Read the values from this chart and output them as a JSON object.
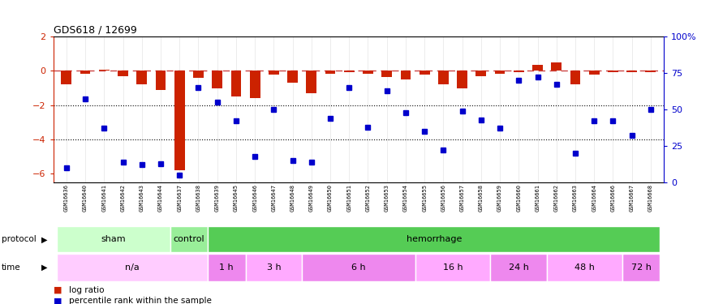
{
  "title": "GDS618 / 12699",
  "samples": [
    "GSM16636",
    "GSM16640",
    "GSM16641",
    "GSM16642",
    "GSM16643",
    "GSM16644",
    "GSM16637",
    "GSM16638",
    "GSM16639",
    "GSM16645",
    "GSM16646",
    "GSM16647",
    "GSM16648",
    "GSM16649",
    "GSM16650",
    "GSM16651",
    "GSM16652",
    "GSM16653",
    "GSM16654",
    "GSM16655",
    "GSM16656",
    "GSM16657",
    "GSM16658",
    "GSM16659",
    "GSM16660",
    "GSM16661",
    "GSM16662",
    "GSM16663",
    "GSM16664",
    "GSM16666",
    "GSM16667",
    "GSM16668"
  ],
  "log_ratio": [
    -0.8,
    -0.15,
    0.05,
    -0.3,
    -0.8,
    -1.1,
    -5.8,
    -0.4,
    -1.0,
    -1.5,
    -1.6,
    -0.2,
    -0.7,
    -1.3,
    -0.15,
    -0.1,
    -0.15,
    -0.35,
    -0.5,
    -0.2,
    -0.8,
    -1.0,
    -0.3,
    -0.15,
    -0.1,
    0.35,
    0.5,
    -0.8,
    -0.2,
    -0.1,
    -0.1,
    -0.1
  ],
  "percentile_rank": [
    10,
    57,
    37,
    14,
    12,
    13,
    5,
    65,
    55,
    42,
    18,
    50,
    15,
    14,
    44,
    65,
    38,
    63,
    48,
    35,
    22,
    49,
    43,
    37,
    70,
    72,
    67,
    20,
    42,
    42,
    32,
    50
  ],
  "protocol_groups": [
    {
      "label": "sham",
      "start": 0,
      "end": 5,
      "color": "#ccffcc"
    },
    {
      "label": "control",
      "start": 6,
      "end": 7,
      "color": "#99ee99"
    },
    {
      "label": "hemorrhage",
      "start": 8,
      "end": 31,
      "color": "#55cc55"
    }
  ],
  "time_groups": [
    {
      "label": "n/a",
      "start": 0,
      "end": 7,
      "color": "#ffccff"
    },
    {
      "label": "1 h",
      "start": 8,
      "end": 9,
      "color": "#ee88ee"
    },
    {
      "label": "3 h",
      "start": 10,
      "end": 12,
      "color": "#ffaaff"
    },
    {
      "label": "6 h",
      "start": 13,
      "end": 18,
      "color": "#ee88ee"
    },
    {
      "label": "16 h",
      "start": 19,
      "end": 22,
      "color": "#ffaaff"
    },
    {
      "label": "24 h",
      "start": 23,
      "end": 25,
      "color": "#ee88ee"
    },
    {
      "label": "48 h",
      "start": 26,
      "end": 29,
      "color": "#ffaaff"
    },
    {
      "label": "72 h",
      "start": 30,
      "end": 31,
      "color": "#ee88ee"
    }
  ],
  "ylim": [
    -6.5,
    2.0
  ],
  "yticks_left": [
    2,
    0,
    -2,
    -4,
    -6
  ],
  "yticks_right": [
    100,
    75,
    50,
    25,
    0
  ],
  "bar_color": "#cc2200",
  "dot_color": "#0000cc",
  "dash_color": "#cc4444",
  "xticklabel_bg": "#cccccc",
  "legend_log_ratio": "log ratio",
  "legend_percentile": "percentile rank within the sample"
}
